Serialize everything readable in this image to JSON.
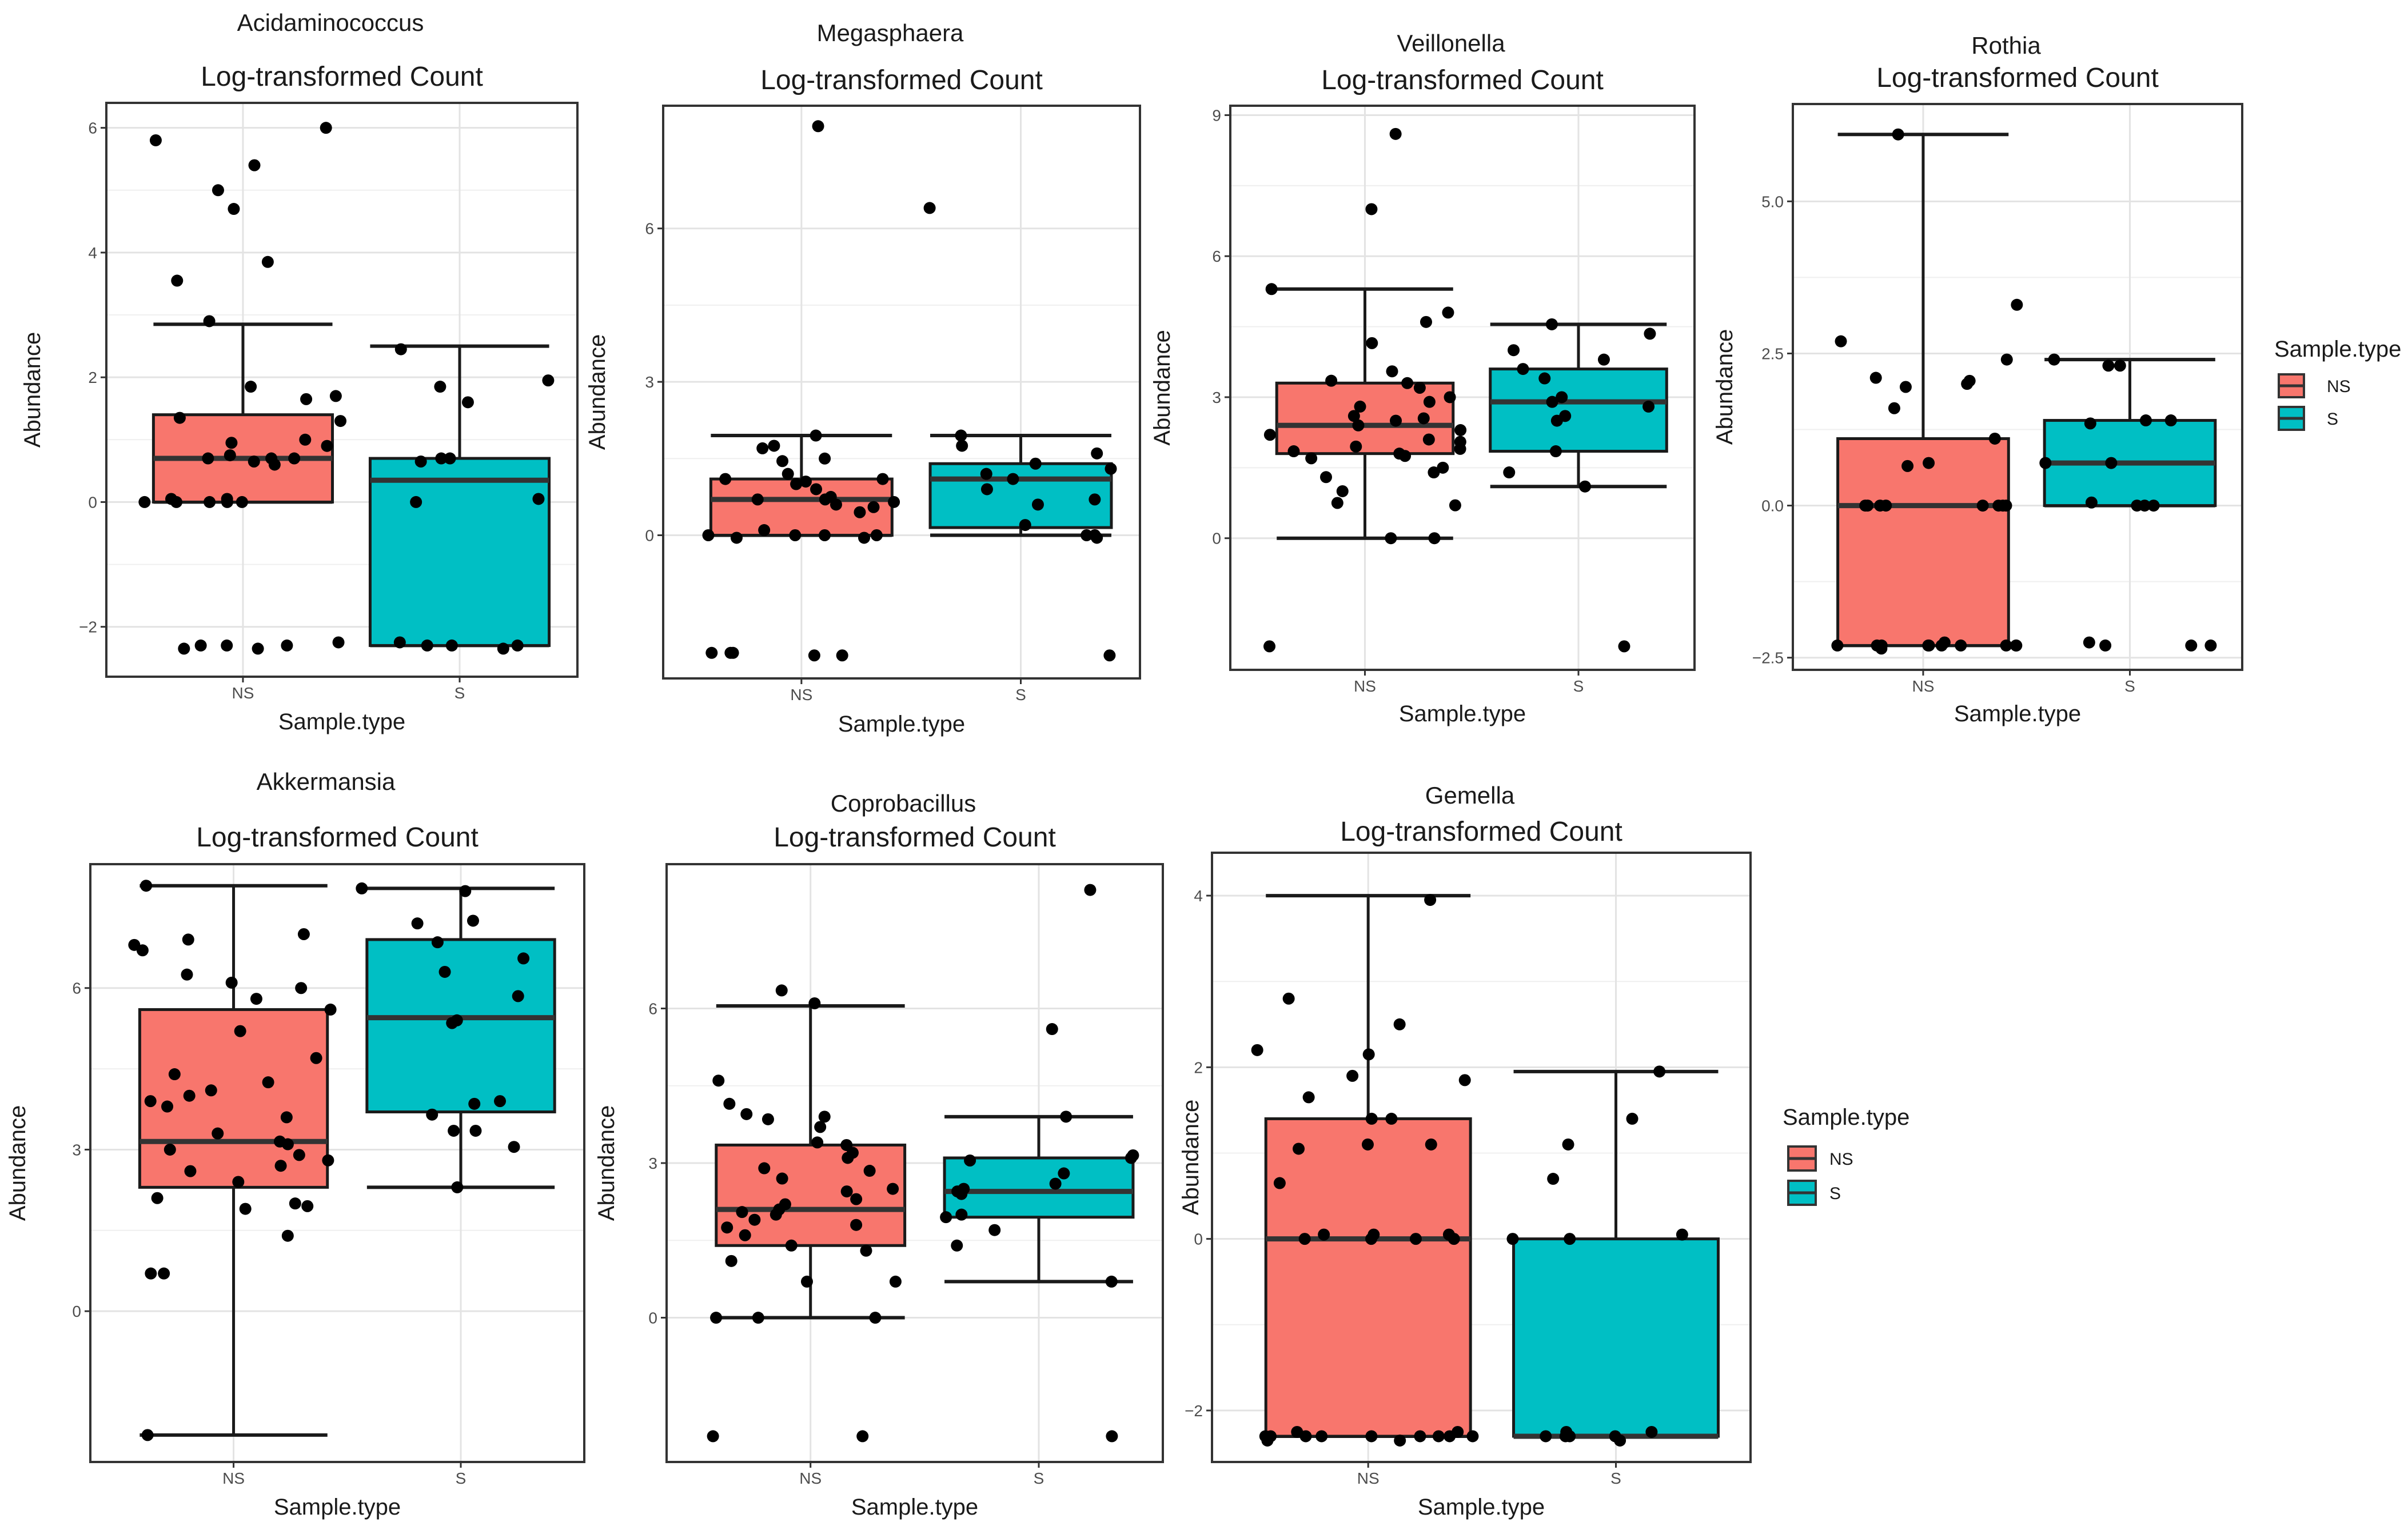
{
  "colors": {
    "NS": "#F8766D",
    "S": "#00BFC4",
    "point": "#000000",
    "grid": "#e3e3e3",
    "frame": "#333333"
  },
  "legend": {
    "title": "Sample.type",
    "items": [
      {
        "label": "NS",
        "color": "#F8766D"
      },
      {
        "label": "S",
        "color": "#00BFC4"
      }
    ]
  },
  "chart_data": [
    {
      "type": "box",
      "title": "Acidaminococcus",
      "subtitle": "Log-transformed Count",
      "xlabel": "Sample.type",
      "ylabel": "Abundance",
      "categories": [
        "NS",
        "S"
      ],
      "ylim": [
        -2.8,
        6.4
      ],
      "yticks": [
        -2,
        0,
        2,
        4,
        6
      ],
      "boxes": [
        {
          "group": "NS",
          "whisker_low": 0,
          "q1": 0,
          "median": 0.7,
          "q3": 1.4,
          "whisker_high": 2.85
        },
        {
          "group": "S",
          "whisker_low": -2.3,
          "q1": -2.3,
          "median": 0.35,
          "q3": 0.7,
          "whisker_high": 2.5
        }
      ],
      "points": [
        {
          "group": "NS",
          "values": [
            6.0,
            5.8,
            5.4,
            5.0,
            4.7,
            3.85,
            3.55,
            2.9,
            1.85,
            1.7,
            1.65,
            1.35,
            1.3,
            1.0,
            0.95,
            0.9,
            0.75,
            0.7,
            0.7,
            0.7,
            0.65,
            0.6,
            0.05,
            0.05,
            0,
            0,
            0,
            0,
            0,
            -2.25,
            -2.3,
            -2.3,
            -2.3,
            -2.35,
            -2.35
          ]
        },
        {
          "group": "S",
          "values": [
            2.45,
            1.95,
            1.85,
            1.6,
            0.7,
            0.7,
            0.65,
            0.05,
            0.0,
            -2.25,
            -2.3,
            -2.3,
            -2.3,
            -2.35
          ]
        }
      ]
    },
    {
      "type": "box",
      "title": "Megasphaera",
      "subtitle": "Log-transformed Count",
      "xlabel": "Sample.type",
      "ylabel": "Abundance",
      "categories": [
        "NS",
        "S"
      ],
      "ylim": [
        -2.8,
        8.4
      ],
      "yticks": [
        0,
        3,
        6
      ],
      "boxes": [
        {
          "group": "NS",
          "whisker_low": 0,
          "q1": 0,
          "median": 0.7,
          "q3": 1.1,
          "whisker_high": 1.95
        },
        {
          "group": "S",
          "whisker_low": 0,
          "q1": 0.15,
          "median": 1.1,
          "q3": 1.4,
          "whisker_high": 1.95
        }
      ],
      "points": [
        {
          "group": "NS",
          "values": [
            8.0,
            1.95,
            1.75,
            1.7,
            1.5,
            1.45,
            1.2,
            1.1,
            1.1,
            1.05,
            1.0,
            0.9,
            0.75,
            0.7,
            0.7,
            0.65,
            0.6,
            0.55,
            0.45,
            0.1,
            0.0,
            0.0,
            0.0,
            0.0,
            -0.05,
            -0.05,
            -2.3,
            -2.3,
            -2.35,
            -2.35,
            -2.3
          ]
        },
        {
          "group": "S",
          "values": [
            6.4,
            1.95,
            1.75,
            1.6,
            1.4,
            1.3,
            1.2,
            1.1,
            0.9,
            0.7,
            0.6,
            0.2,
            0.0,
            0.0,
            -0.05,
            -2.35
          ]
        }
      ]
    },
    {
      "type": "box",
      "title": "Veillonella",
      "subtitle": "Log-transformed Count",
      "xlabel": "Sample.type",
      "ylabel": "Abundance",
      "categories": [
        "NS",
        "S"
      ],
      "ylim": [
        -2.8,
        9.2
      ],
      "yticks": [
        0,
        3,
        6,
        9
      ],
      "boxes": [
        {
          "group": "NS",
          "whisker_low": 0,
          "q1": 1.8,
          "median": 2.4,
          "q3": 3.3,
          "whisker_high": 5.3
        },
        {
          "group": "S",
          "whisker_low": 1.1,
          "q1": 1.85,
          "median": 2.9,
          "q3": 3.6,
          "whisker_high": 4.55
        }
      ],
      "points": [
        {
          "group": "NS",
          "values": [
            8.6,
            7.0,
            5.3,
            4.8,
            4.6,
            4.15,
            3.55,
            3.35,
            3.3,
            3.2,
            3.0,
            2.9,
            2.8,
            2.6,
            2.55,
            2.5,
            2.4,
            2.3,
            2.2,
            2.1,
            2.05,
            1.95,
            1.9,
            1.85,
            1.8,
            1.75,
            1.7,
            1.5,
            1.4,
            1.3,
            1.0,
            0.75,
            0.7,
            0.0,
            0.0,
            -2.3
          ]
        },
        {
          "group": "S",
          "values": [
            4.55,
            4.35,
            4.0,
            3.8,
            3.6,
            3.4,
            3.0,
            2.9,
            2.8,
            2.6,
            2.5,
            1.85,
            1.4,
            1.1,
            -2.3
          ]
        }
      ]
    },
    {
      "type": "box",
      "title": "Rothia",
      "subtitle": "Log-transformed Count",
      "xlabel": "Sample.type",
      "ylabel": "Abundance",
      "categories": [
        "NS",
        "S"
      ],
      "ylim": [
        -2.7,
        6.6
      ],
      "yticks": [
        -2.5,
        0.0,
        2.5,
        5.0
      ],
      "ytick_labels": [
        "−2.5",
        "0.0",
        "2.5",
        "5.0"
      ],
      "boxes": [
        {
          "group": "NS",
          "whisker_low": -2.3,
          "q1": -2.3,
          "median": 0.0,
          "q3": 1.1,
          "whisker_high": 6.1
        },
        {
          "group": "S",
          "whisker_low": 0.0,
          "q1": 0.0,
          "median": 0.7,
          "q3": 1.4,
          "whisker_high": 2.4
        }
      ],
      "points": [
        {
          "group": "NS",
          "values": [
            6.1,
            3.3,
            2.7,
            2.4,
            2.1,
            2.05,
            2.0,
            1.95,
            1.6,
            1.1,
            0.7,
            0.65,
            0.0,
            0.0,
            0.0,
            0.0,
            0.0,
            0.0,
            0.0,
            0.0,
            -2.25,
            -2.3,
            -2.3,
            -2.3,
            -2.3,
            -2.3,
            -2.3,
            -2.3,
            -2.3,
            -2.3,
            -2.3,
            -2.35
          ]
        },
        {
          "group": "S",
          "values": [
            2.4,
            2.3,
            2.3,
            1.4,
            1.4,
            1.35,
            0.7,
            0.7,
            0.05,
            0.0,
            0.0,
            0.0,
            -2.25,
            -2.3,
            -2.3,
            -2.3
          ]
        }
      ]
    },
    {
      "type": "box",
      "title": "Akkermansia",
      "subtitle": "Log-transformed Count",
      "xlabel": "Sample.type",
      "ylabel": "Abundance",
      "categories": [
        "NS",
        "S"
      ],
      "ylim": [
        -2.8,
        8.3
      ],
      "yticks": [
        0,
        3,
        6
      ],
      "boxes": [
        {
          "group": "NS",
          "whisker_low": -2.3,
          "q1": 2.3,
          "median": 3.15,
          "q3": 5.6,
          "whisker_high": 7.9
        },
        {
          "group": "S",
          "whisker_low": 2.3,
          "q1": 3.7,
          "median": 5.45,
          "q3": 6.9,
          "whisker_high": 7.85
        }
      ],
      "points": [
        {
          "group": "NS",
          "values": [
            7.9,
            7.0,
            6.9,
            6.8,
            6.7,
            6.25,
            6.1,
            6.0,
            5.8,
            5.6,
            5.2,
            4.7,
            4.4,
            4.25,
            4.1,
            4.0,
            3.9,
            3.8,
            3.6,
            3.3,
            3.15,
            3.1,
            3.0,
            2.9,
            2.8,
            2.7,
            2.6,
            2.4,
            2.1,
            2.0,
            1.95,
            1.9,
            1.4,
            0.7,
            0.7,
            -2.3
          ]
        },
        {
          "group": "S",
          "values": [
            7.85,
            7.8,
            7.25,
            7.2,
            6.85,
            6.55,
            6.3,
            5.85,
            5.4,
            5.35,
            3.9,
            3.85,
            3.65,
            3.35,
            3.35,
            3.05,
            2.3
          ]
        }
      ]
    },
    {
      "type": "box",
      "title": "Coprobacillus",
      "subtitle": "Log-transformed Count",
      "xlabel": "Sample.type",
      "ylabel": "Abundance",
      "categories": [
        "NS",
        "S"
      ],
      "ylim": [
        -2.8,
        8.8
      ],
      "yticks": [
        0,
        3,
        6
      ],
      "boxes": [
        {
          "group": "NS",
          "whisker_low": 0,
          "q1": 1.4,
          "median": 2.1,
          "q3": 3.35,
          "whisker_high": 6.05
        },
        {
          "group": "S",
          "whisker_low": 0.7,
          "q1": 1.95,
          "median": 2.45,
          "q3": 3.1,
          "whisker_high": 3.9
        }
      ],
      "points": [
        {
          "group": "NS",
          "values": [
            6.35,
            6.1,
            4.6,
            4.15,
            3.95,
            3.9,
            3.85,
            3.7,
            3.4,
            3.35,
            3.2,
            3.1,
            2.9,
            2.85,
            2.7,
            2.5,
            2.45,
            2.3,
            2.2,
            2.1,
            2.05,
            2.0,
            1.9,
            1.8,
            1.75,
            1.6,
            1.4,
            1.3,
            1.1,
            0.7,
            0.7,
            0.0,
            0.0,
            0.0,
            -2.3,
            -2.3
          ]
        },
        {
          "group": "S",
          "values": [
            8.3,
            5.6,
            3.9,
            3.15,
            3.1,
            3.05,
            2.8,
            2.6,
            2.5,
            2.45,
            2.4,
            2.0,
            1.95,
            1.7,
            1.4,
            0.7,
            -2.3
          ]
        }
      ]
    },
    {
      "type": "box",
      "title": "Gemella",
      "subtitle": "Log-transformed Count",
      "xlabel": "Sample.type",
      "ylabel": "Abundance",
      "categories": [
        "NS",
        "S"
      ],
      "ylim": [
        -2.6,
        4.5
      ],
      "yticks": [
        -2,
        0,
        2,
        4
      ],
      "boxes": [
        {
          "group": "NS",
          "whisker_low": -2.3,
          "q1": -2.3,
          "median": 0.0,
          "q3": 1.4,
          "whisker_high": 4.0
        },
        {
          "group": "S",
          "whisker_low": -2.3,
          "q1": -2.3,
          "median": -2.3,
          "q3": 0.0,
          "whisker_high": 1.95
        }
      ],
      "points": [
        {
          "group": "NS",
          "values": [
            3.95,
            2.8,
            2.5,
            2.2,
            2.15,
            1.9,
            1.85,
            1.65,
            1.4,
            1.4,
            1.1,
            1.1,
            1.05,
            0.65,
            0.05,
            0.05,
            0.05,
            0.0,
            0.0,
            0.0,
            0.0,
            -2.25,
            -2.25,
            -2.3,
            -2.3,
            -2.3,
            -2.3,
            -2.3,
            -2.3,
            -2.3,
            -2.3,
            -2.3,
            -2.35,
            -2.35
          ]
        },
        {
          "group": "S",
          "values": [
            1.95,
            1.4,
            1.1,
            0.7,
            0.05,
            0.0,
            0.0,
            -2.25,
            -2.25,
            -2.3,
            -2.3,
            -2.3,
            -2.3,
            -2.35
          ]
        }
      ]
    }
  ]
}
